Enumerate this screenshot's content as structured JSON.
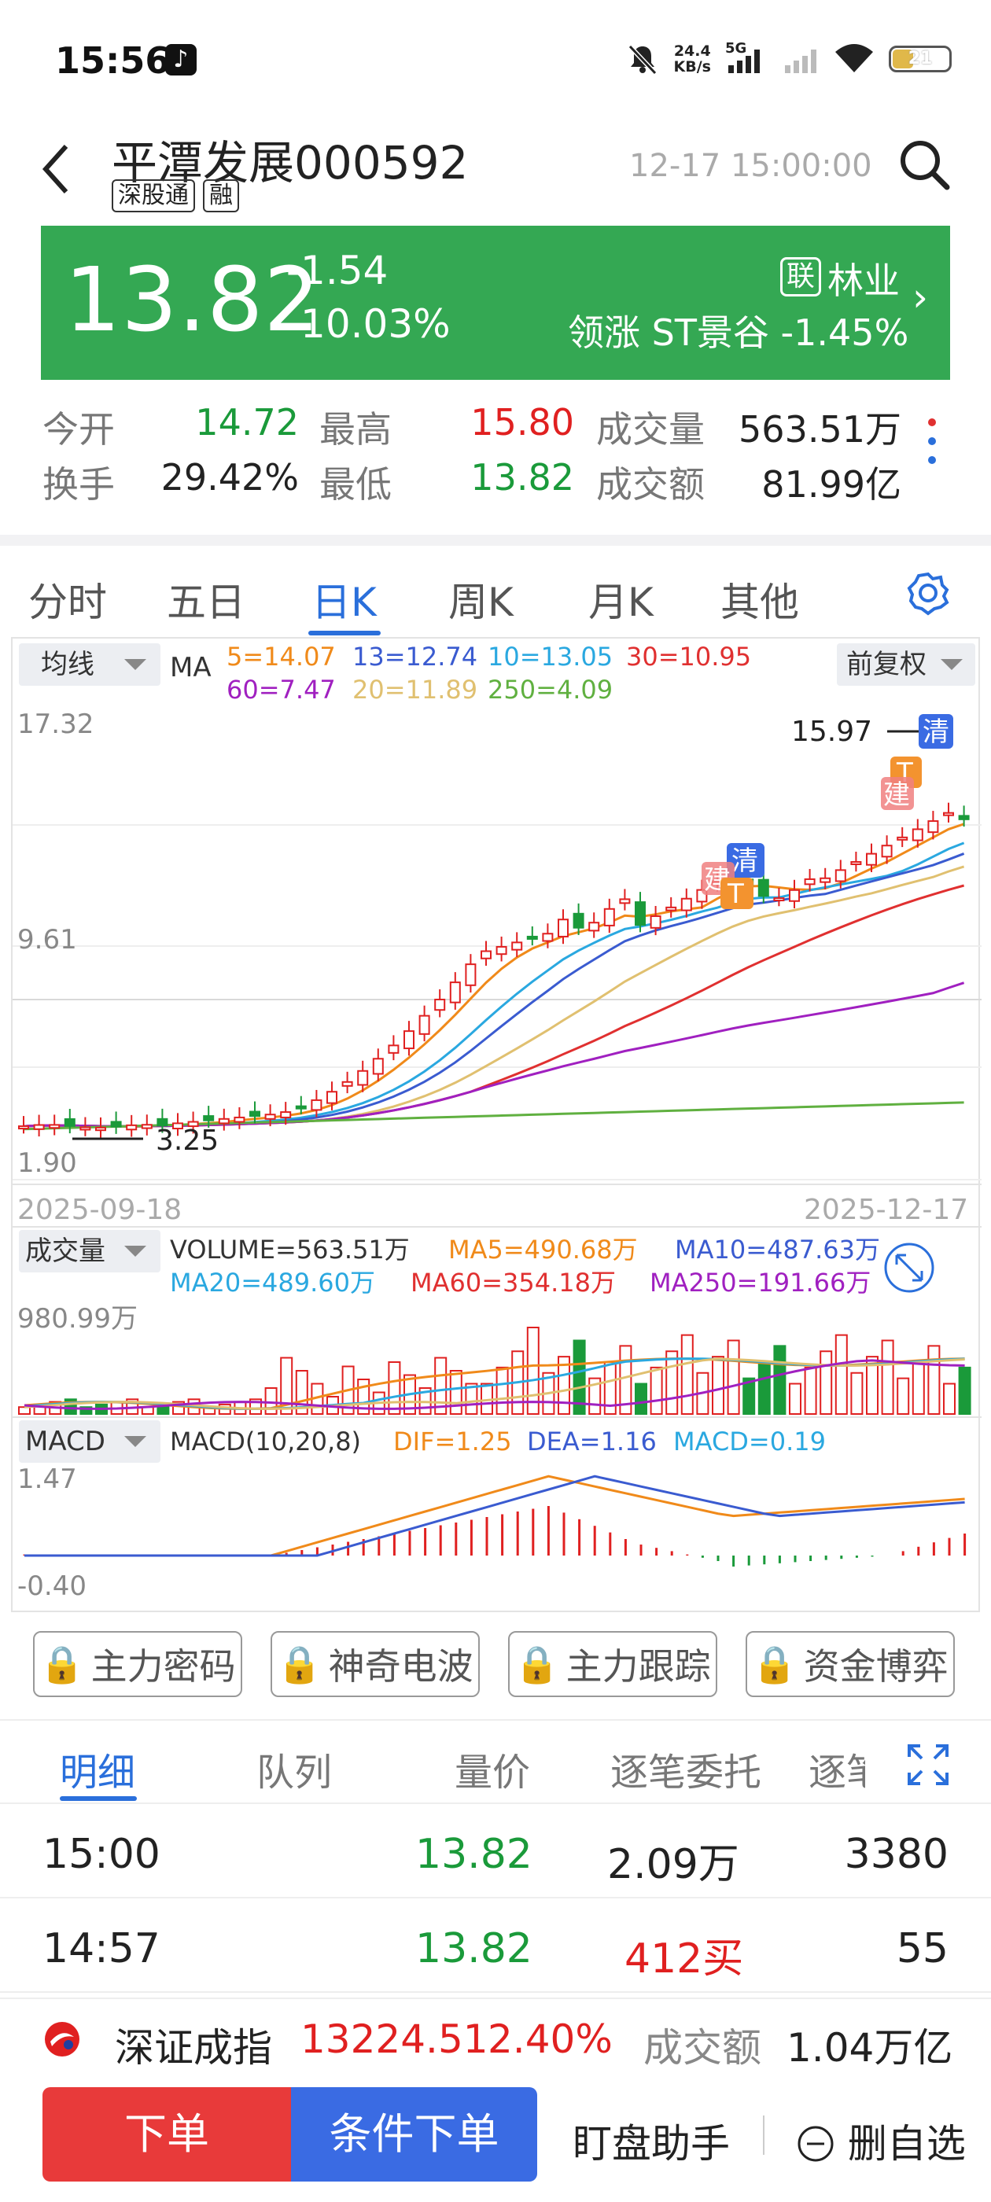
{
  "status_bar": {
    "time": "15:56",
    "net_speed_value": "24.4",
    "net_speed_unit": "KB/s",
    "net_type": "5G",
    "battery": "21"
  },
  "header": {
    "stock_name": "平潭发展",
    "stock_code": "000592",
    "tag1": "深股通",
    "tag2": "融",
    "datetime": "12-17 15:00:00"
  },
  "quote": {
    "price": "13.82",
    "change": "-1.54",
    "change_pct": "-10.03%",
    "lian": "联",
    "industry": "林业",
    "leader": "领涨 ST景谷 -1.45%"
  },
  "stats": {
    "open_label": "今开",
    "open": "14.72",
    "high_label": "最高",
    "high": "15.80",
    "vol_label": "成交量",
    "vol": "563.51万",
    "turnover_label": "换手",
    "turnover": "29.42%",
    "low_label": "最低",
    "low": "13.82",
    "amount_label": "成交额",
    "amount": "81.99亿"
  },
  "kline_tabs": [
    "分时",
    "五日",
    "日K",
    "周K",
    "月K",
    "其他"
  ],
  "main_chart": {
    "ma_selector": "均线",
    "ma_label": "MA",
    "ma5": "5=14.07",
    "ma13": "13=12.74",
    "ma10": "10=13.05",
    "ma30": "30=10.95",
    "ma60": "60=7.47",
    "ma20": "20=11.89",
    "ma250": "250=4.09",
    "adjust": "前复权",
    "y_top": "17.32",
    "y_mid": "9.61",
    "y_bottom": "1.90",
    "max_label": "15.97",
    "min_label": "3.25",
    "date_start": "2025-09-18",
    "date_end": "2025-12-17",
    "marker_qing": "清",
    "marker_t": "T",
    "marker_jian": "建"
  },
  "volume_chart": {
    "selector": "成交量",
    "volume": "VOLUME=563.51万",
    "ma5": "MA5=490.68万",
    "ma10": "MA10=487.63万",
    "ma20": "MA20=489.60万",
    "ma60": "MA60=354.18万",
    "ma250": "MA250=191.66万",
    "y_top": "980.99万"
  },
  "macd_chart": {
    "selector": "MACD",
    "params": "MACD(10,20,8)",
    "dif": "DIF=1.25",
    "dea": "DEA=1.16",
    "macd": "MACD=0.19",
    "y_top": "1.47",
    "y_bottom": "-0.40"
  },
  "lock_buttons": [
    "主力密码",
    "神奇电波",
    "主力跟踪",
    "资金博弈"
  ],
  "trade_tabs": [
    "明细",
    "队列",
    "量价",
    "逐笔委托",
    "逐笔"
  ],
  "trades": [
    {
      "time": "15:00",
      "price": "13.82",
      "volume": "2.09万",
      "count": "3380"
    },
    {
      "time": "14:57",
      "price": "13.82",
      "volume": "412买",
      "count": "55"
    }
  ],
  "index_bar": {
    "name": "深证成指",
    "value": "13224.51",
    "pct": "2.40%",
    "amount_label": "成交额",
    "amount": "1.04万亿"
  },
  "bottom_bar": {
    "order": "下单",
    "cond_order": "条件下单",
    "helper": "盯盘助手",
    "delete": "删自选"
  },
  "colors": {
    "up": "#e02020",
    "down": "#1a9a3a",
    "quote_bg": "#34a853",
    "accent": "#2a6fdb",
    "ma5": "#f08a1a",
    "ma10": "#2aa8e0",
    "ma13": "#3a5bd0",
    "ma20": "#e0c070",
    "ma30": "#e03030",
    "ma60": "#a020c0",
    "ma250": "#60b040"
  }
}
